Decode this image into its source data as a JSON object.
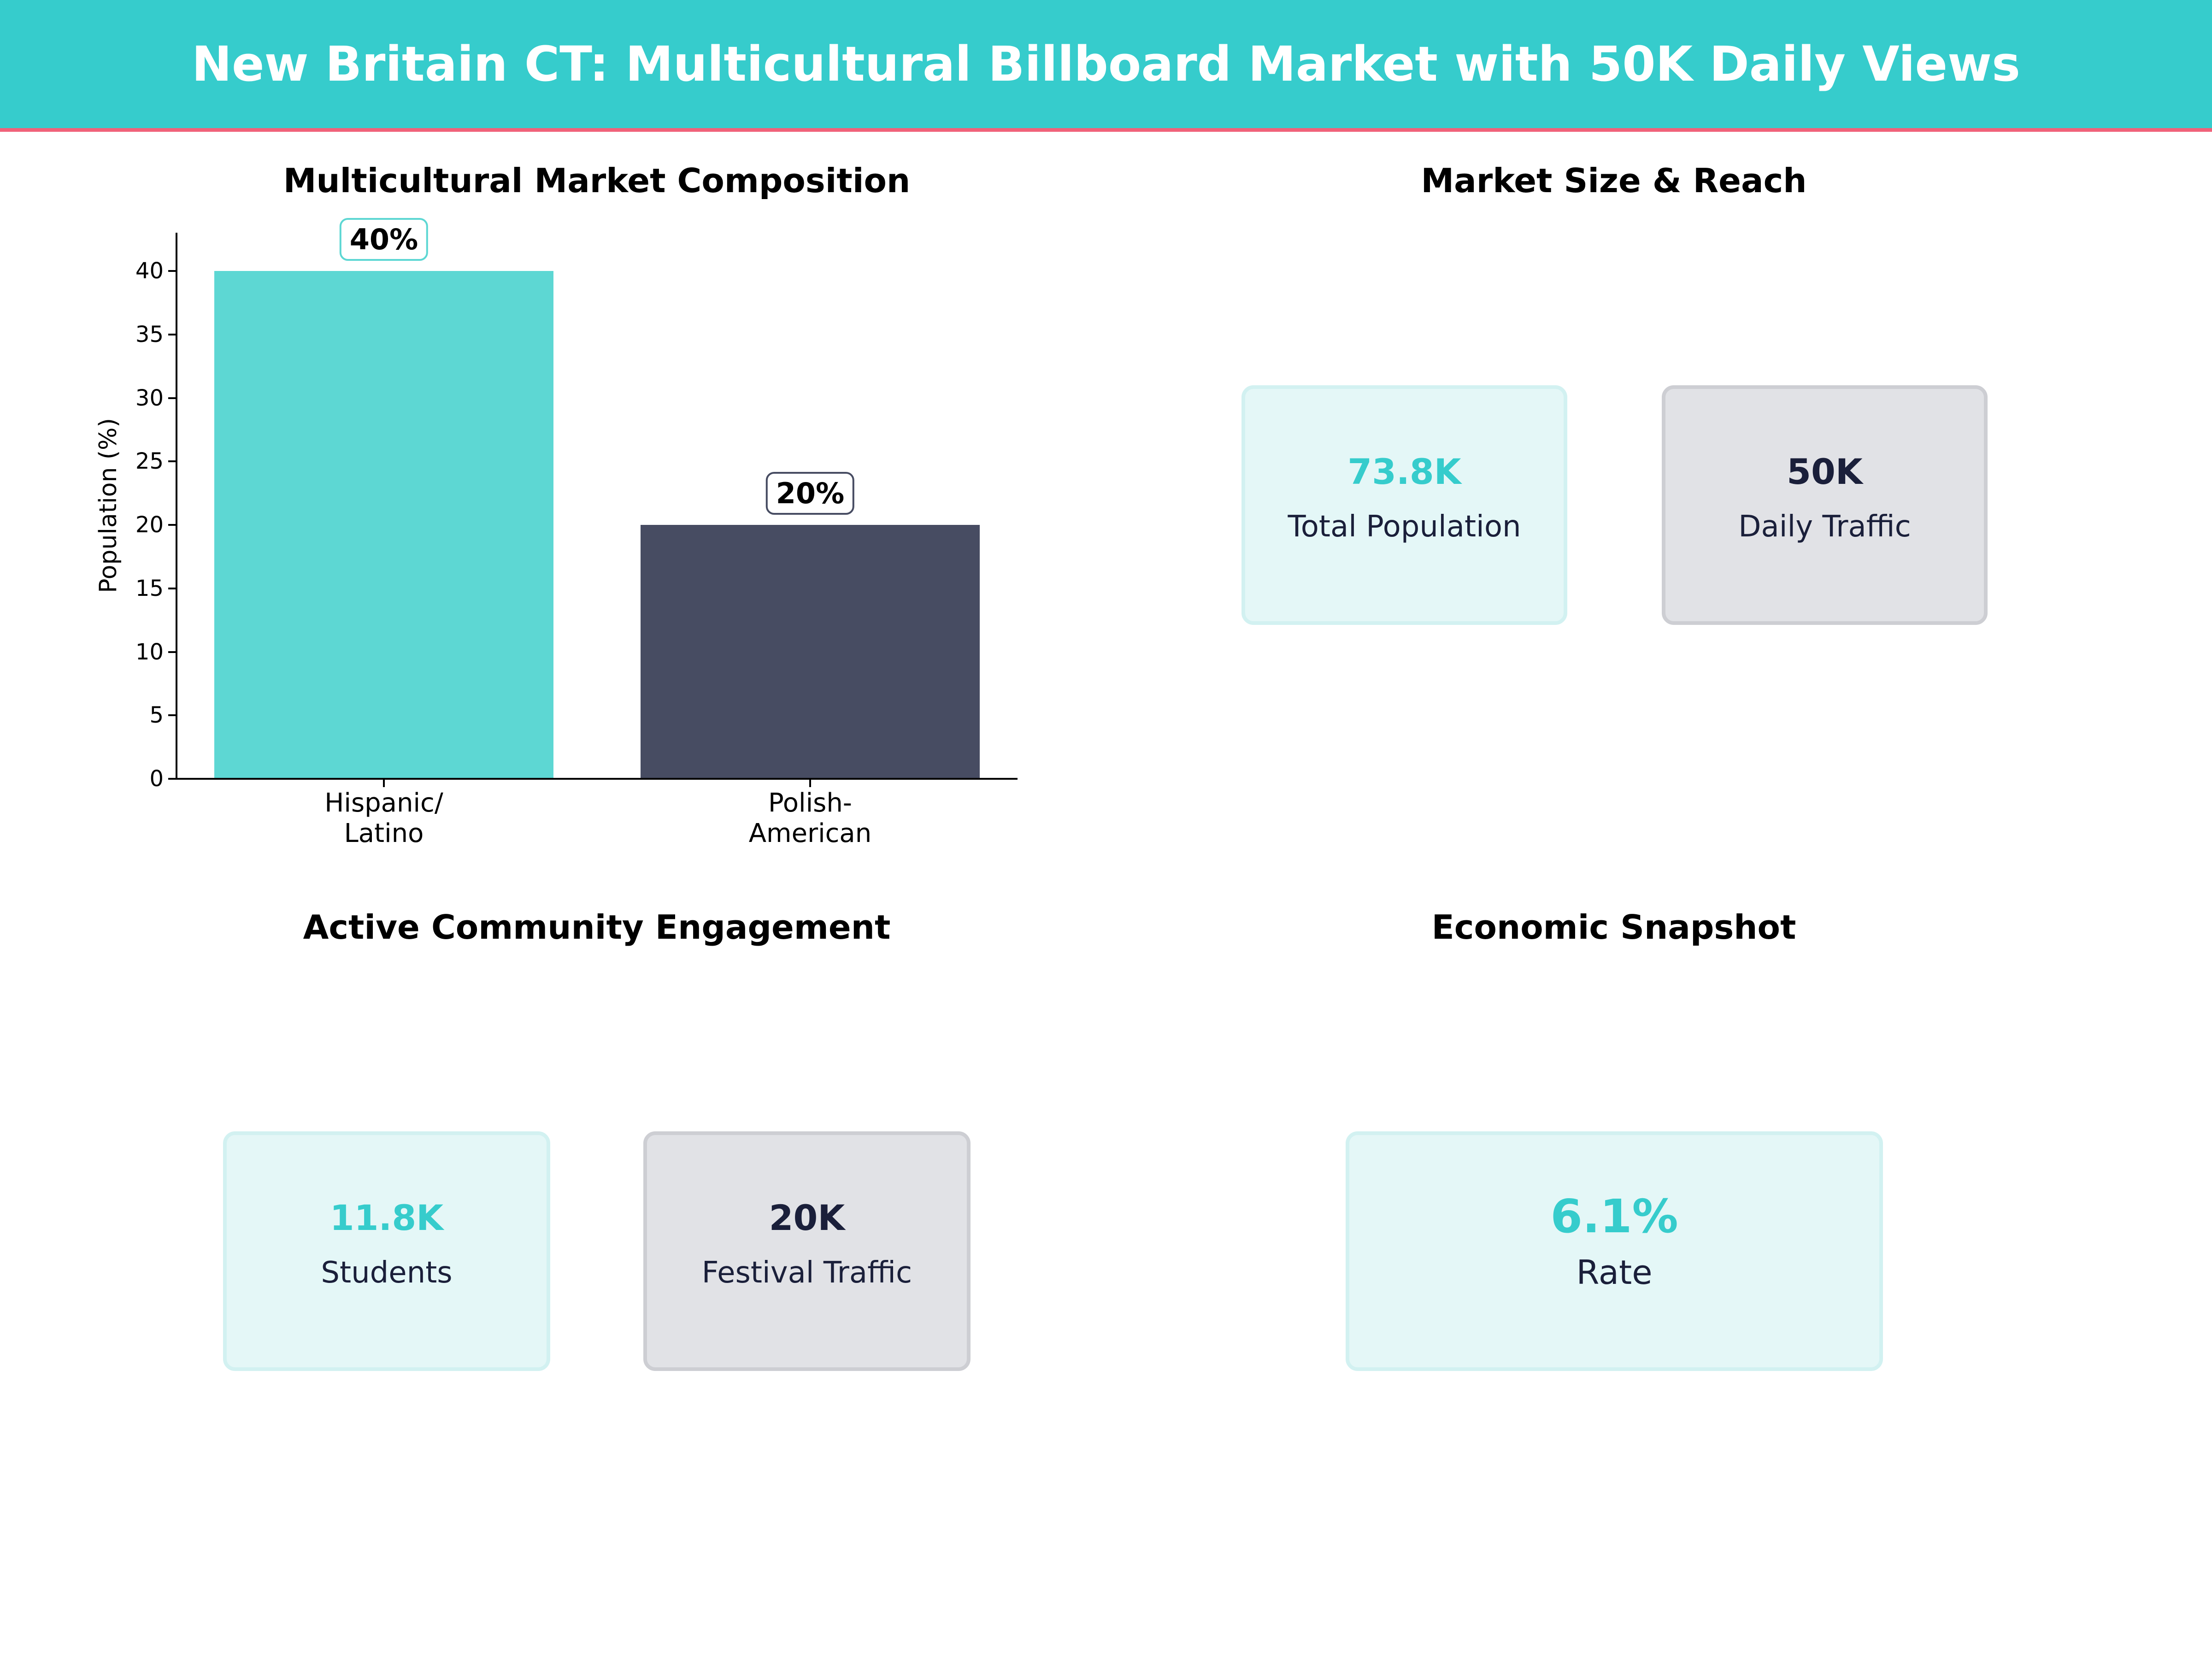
{
  "header": {
    "title": "New Britain CT: Multicultural Billboard Market with 50K Daily Views"
  },
  "panels": {
    "composition": {
      "title": "Multicultural Market Composition"
    },
    "market": {
      "title": "Market Size & Reach"
    },
    "community": {
      "title": "Active Community Engagement"
    },
    "economic": {
      "title": "Economic Snapshot"
    }
  },
  "colors": {
    "accent": "#36cccc",
    "bar_teal": "#5dd7d3",
    "bar_navy": "#474c62",
    "navy_text": "#1a1f3a",
    "header_line": "#f0627a"
  },
  "chart_data": {
    "type": "bar",
    "title": "Multicultural Market Composition",
    "categories": [
      "Hispanic/\nLatino",
      "Polish-\nAmerican"
    ],
    "category_lines": [
      [
        "Hispanic/",
        "Latino"
      ],
      [
        "Polish-",
        "American"
      ]
    ],
    "values": [
      40,
      20
    ],
    "value_labels": [
      "40%",
      "20%"
    ],
    "bar_colors": [
      "#5dd7d3",
      "#474c62"
    ],
    "xlabel": "",
    "ylabel": "Population (%)",
    "ylim": [
      0,
      43
    ],
    "yticks": [
      0,
      5,
      10,
      15,
      20,
      25,
      30,
      35,
      40
    ],
    "grid": false
  },
  "market_cards": [
    {
      "value": "73.8K",
      "label": "Total Population",
      "style": "teal"
    },
    {
      "value": "50K",
      "label": "Daily Traffic",
      "style": "gray"
    }
  ],
  "community_cards": [
    {
      "value": "11.8K",
      "label": "Students",
      "style": "teal"
    },
    {
      "value": "20K",
      "label": "Festival Traffic",
      "style": "gray"
    }
  ],
  "economic_cards": [
    {
      "value": "6.1%",
      "label": "Rate",
      "style": "teal"
    }
  ]
}
